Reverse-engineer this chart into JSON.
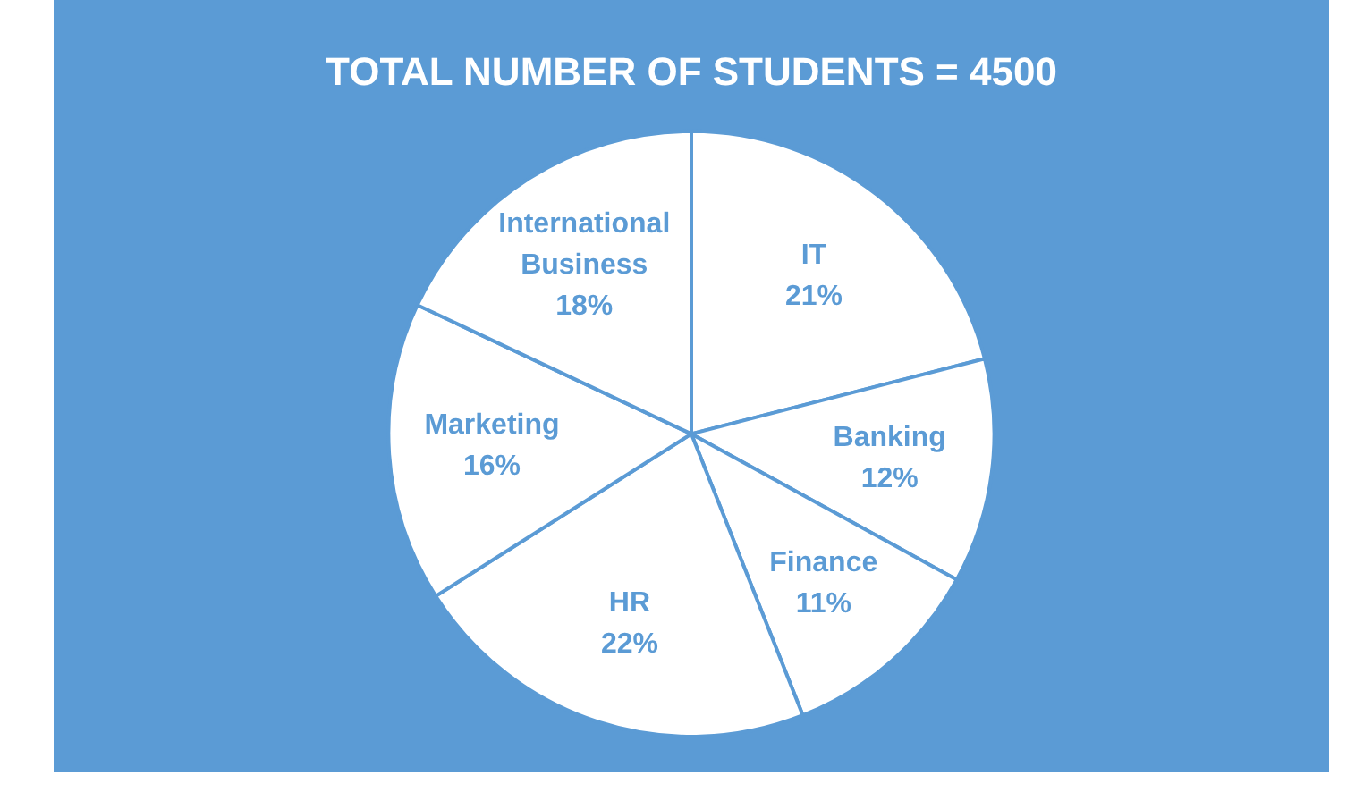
{
  "chart_data": {
    "type": "pie",
    "title": "TOTAL NUMBER OF STUDENTS = 4500",
    "categories": [
      "IT",
      "Banking",
      "Finance",
      "HR",
      "Marketing",
      "International Business"
    ],
    "values": [
      21,
      12,
      11,
      22,
      16,
      18
    ],
    "value_labels": [
      "21%",
      "12%",
      "11%",
      "22%",
      "16%",
      "18%"
    ],
    "colors": [
      "#ffffff",
      "#ffffff",
      "#ffffff",
      "#ffffff",
      "#ffffff",
      "#ffffff"
    ],
    "legend": false
  }
}
